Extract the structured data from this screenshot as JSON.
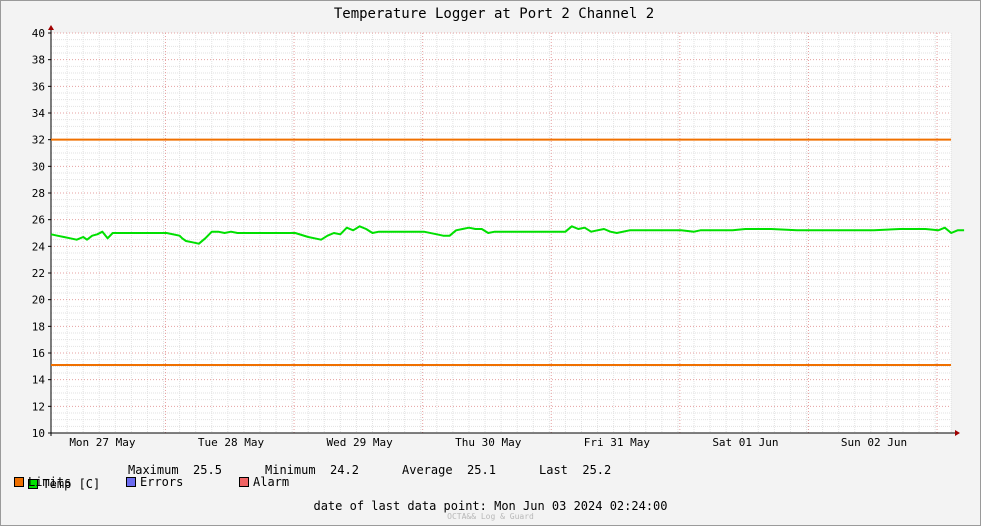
{
  "chart_data": {
    "type": "line",
    "title": "Temperature Logger at Port 2 Channel 2",
    "ylim": [
      10,
      40
    ],
    "y_ticks": [
      10,
      12,
      14,
      16,
      18,
      20,
      22,
      24,
      26,
      28,
      30,
      32,
      34,
      36,
      38,
      40
    ],
    "x_labels": [
      "Mon 27 May",
      "Tue 28 May",
      "Wed 29 May",
      "Thu 30 May",
      "Fri 31 May",
      "Sat 01 Jun",
      "Sun 02 Jun"
    ],
    "xlim_days": [
      0,
      7.1
    ],
    "grid": true,
    "series": [
      {
        "name": "Temp [C]",
        "color": "#00e000",
        "x_days": [
          0,
          0.05,
          0.1,
          0.15,
          0.2,
          0.25,
          0.28,
          0.32,
          0.36,
          0.4,
          0.44,
          0.48,
          0.52,
          0.55,
          0.6,
          0.65,
          0.75,
          0.9,
          1.0,
          1.02,
          1.05,
          1.1,
          1.15,
          1.2,
          1.25,
          1.3,
          1.35,
          1.4,
          1.45,
          1.5,
          1.6,
          1.7,
          1.8,
          1.9,
          2.0,
          2.05,
          2.1,
          2.15,
          2.2,
          2.25,
          2.3,
          2.35,
          2.4,
          2.45,
          2.5,
          2.55,
          2.6,
          2.7,
          2.8,
          2.9,
          3.0,
          3.05,
          3.1,
          3.15,
          3.2,
          3.25,
          3.3,
          3.35,
          3.4,
          3.45,
          3.5,
          3.6,
          3.8,
          4.0,
          4.05,
          4.1,
          4.15,
          4.2,
          4.25,
          4.3,
          4.35,
          4.4,
          4.5,
          4.6,
          4.7,
          4.8,
          4.9,
          5.0,
          5.05,
          5.1,
          5.2,
          5.3,
          5.4,
          5.5,
          5.6,
          5.8,
          6.0,
          6.2,
          6.4,
          6.6,
          6.8,
          6.9,
          6.95,
          7.0,
          7.05,
          7.1
        ],
        "values": [
          24.9,
          24.8,
          24.7,
          24.6,
          24.5,
          24.7,
          24.5,
          24.8,
          24.9,
          25.1,
          24.6,
          25.0,
          25.0,
          25.0,
          25.0,
          25.0,
          25.0,
          25.0,
          24.8,
          24.6,
          24.4,
          24.3,
          24.2,
          24.6,
          25.1,
          25.1,
          25.0,
          25.1,
          25.0,
          25.0,
          25.0,
          25.0,
          25.0,
          25.0,
          24.7,
          24.6,
          24.5,
          24.8,
          25.0,
          24.9,
          25.4,
          25.2,
          25.5,
          25.3,
          25.0,
          25.1,
          25.1,
          25.1,
          25.1,
          25.1,
          24.9,
          24.8,
          24.8,
          25.2,
          25.3,
          25.4,
          25.3,
          25.3,
          25.0,
          25.1,
          25.1,
          25.1,
          25.1,
          25.1,
          25.5,
          25.3,
          25.4,
          25.1,
          25.2,
          25.3,
          25.1,
          25.0,
          25.2,
          25.2,
          25.2,
          25.2,
          25.2,
          25.1,
          25.2,
          25.2,
          25.2,
          25.2,
          25.3,
          25.3,
          25.3,
          25.2,
          25.2,
          25.2,
          25.2,
          25.3,
          25.3,
          25.2,
          25.4,
          25.0,
          25.2,
          25.2
        ]
      },
      {
        "name": "Limits",
        "color": "#f07000",
        "hlines": [
          32,
          15.1
        ]
      },
      {
        "name": "Errors",
        "color": "#6b6bf0"
      },
      {
        "name": "Alarm",
        "color": "#f06464"
      }
    ]
  },
  "legend": {
    "temp_label": "Temp [C]",
    "limits_label": "Limits",
    "errors_label": "Errors",
    "alarm_label": "Alarm"
  },
  "stats": {
    "max_label": "Maximum",
    "max_value": "25.5",
    "min_label": "Minimum",
    "min_value": "24.2",
    "avg_label": "Average",
    "avg_value": "25.1",
    "last_label": "Last",
    "last_value": "25.2"
  },
  "footer": {
    "text": "date of last data point:  Mon Jun 03 2024 02:24:00"
  },
  "watermark": "OCTA&& Log & Guard"
}
